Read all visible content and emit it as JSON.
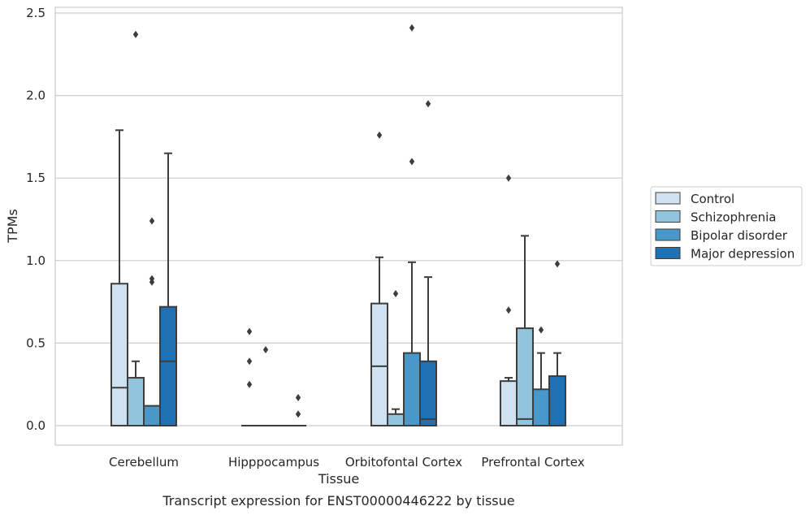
{
  "chart_data": {
    "type": "box",
    "title": "",
    "caption": "Transcript expression for ENST00000446222 by tissue",
    "xlabel": "Tissue",
    "ylabel": "TPMs",
    "ylim": [
      -0.12,
      2.55
    ],
    "yticks": [
      "0.0",
      "0.5",
      "1.0",
      "1.5",
      "2.0",
      "2.5"
    ],
    "ytick_values": [
      0,
      0.5,
      1.0,
      1.5,
      2.0,
      2.5
    ],
    "grid": true,
    "legend_position": "right",
    "categories": [
      "Cerebellum",
      "Hipppocampus",
      "Orbitofontal Cortex",
      "Prefrontal Cortex"
    ],
    "series": [
      {
        "name": "Control",
        "color": "#d0e1f0",
        "boxes": [
          {
            "q1": 0,
            "median": 0.23,
            "q3": 0.86,
            "whisker_low": 0,
            "whisker_high": 1.79,
            "outliers": []
          },
          {
            "q1": 0,
            "median": 0,
            "q3": 0,
            "whisker_low": 0,
            "whisker_high": 0,
            "outliers": [
              0.25,
              0.39,
              0.57
            ]
          },
          {
            "q1": 0,
            "median": 0.36,
            "q3": 0.74,
            "whisker_low": 0,
            "whisker_high": 1.02,
            "outliers": [
              1.76
            ]
          },
          {
            "q1": 0,
            "median": 0,
            "q3": 0.27,
            "whisker_low": 0,
            "whisker_high": 0.29,
            "outliers": [
              0.7,
              1.5
            ]
          }
        ]
      },
      {
        "name": "Schizophrenia",
        "color": "#93c4de",
        "boxes": [
          {
            "q1": 0,
            "median": 0,
            "q3": 0.29,
            "whisker_low": 0,
            "whisker_high": 0.39,
            "outliers": [
              2.37
            ]
          },
          {
            "q1": 0,
            "median": 0,
            "q3": 0,
            "whisker_low": 0,
            "whisker_high": 0,
            "outliers": [
              0.46
            ]
          },
          {
            "q1": 0,
            "median": 0,
            "q3": 0.07,
            "whisker_low": 0,
            "whisker_high": 0.1,
            "outliers": [
              0.8
            ]
          },
          {
            "q1": 0,
            "median": 0.04,
            "q3": 0.59,
            "whisker_low": 0,
            "whisker_high": 1.15,
            "outliers": []
          }
        ]
      },
      {
        "name": "Bipolar disorder",
        "color": "#4a98c9",
        "boxes": [
          {
            "q1": 0,
            "median": 0,
            "q3": 0.12,
            "whisker_low": 0,
            "whisker_high": 0.12,
            "outliers": [
              0.87,
              0.89,
              1.24
            ]
          },
          {
            "q1": 0,
            "median": 0,
            "q3": 0,
            "whisker_low": 0,
            "whisker_high": 0,
            "outliers": []
          },
          {
            "q1": 0,
            "median": 0,
            "q3": 0.44,
            "whisker_low": 0,
            "whisker_high": 0.99,
            "outliers": [
              1.6,
              2.41
            ]
          },
          {
            "q1": 0,
            "median": 0,
            "q3": 0.22,
            "whisker_low": 0,
            "whisker_high": 0.44,
            "outliers": [
              0.58
            ]
          }
        ]
      },
      {
        "name": "Major depression",
        "color": "#2070b4",
        "boxes": [
          {
            "q1": 0,
            "median": 0.39,
            "q3": 0.72,
            "whisker_low": 0,
            "whisker_high": 1.65,
            "outliers": []
          },
          {
            "q1": 0,
            "median": 0,
            "q3": 0,
            "whisker_low": 0,
            "whisker_high": 0,
            "outliers": [
              0.07,
              0.17
            ]
          },
          {
            "q1": 0,
            "median": 0.04,
            "q3": 0.39,
            "whisker_low": 0,
            "whisker_high": 0.9,
            "outliers": [
              1.95
            ]
          },
          {
            "q1": 0,
            "median": 0,
            "q3": 0.3,
            "whisker_low": 0,
            "whisker_high": 0.44,
            "outliers": [
              0.98
            ]
          }
        ]
      }
    ]
  }
}
